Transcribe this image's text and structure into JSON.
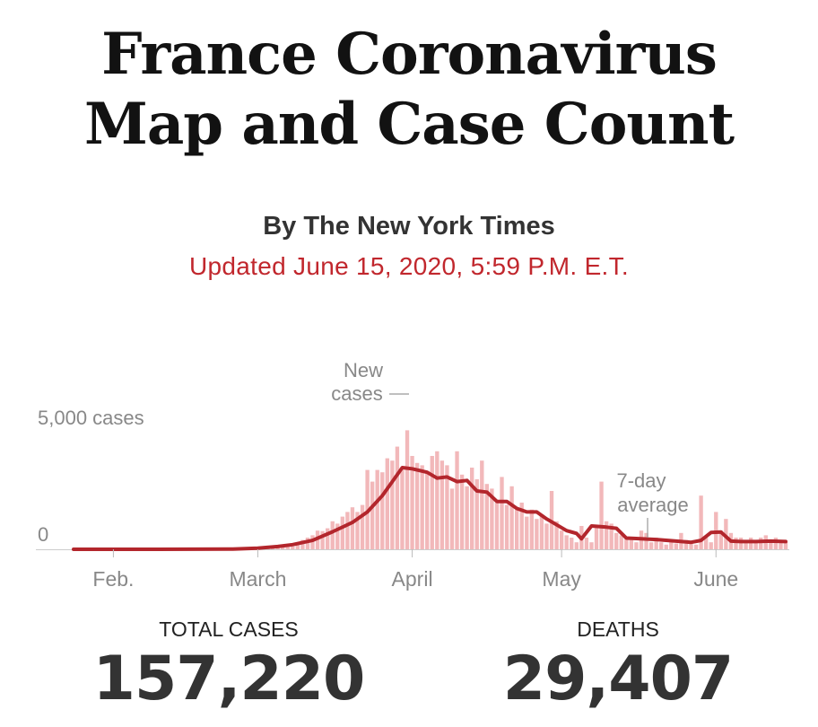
{
  "header": {
    "title_line1": "France Coronavirus",
    "title_line2": "Map and Case Count",
    "byline": "By The New York Times",
    "updated": "Updated June 15, 2020, 5:59 P.M. E.T."
  },
  "colors": {
    "line": "#b3262c",
    "bar": "#f2b8ba",
    "updated_text": "#c1272d"
  },
  "stats": {
    "total_cases_label": "TOTAL CASES",
    "total_cases_value": "157,220",
    "deaths_label": "DEATHS",
    "deaths_value": "29,407"
  },
  "chart_data": {
    "type": "bar",
    "ytick_labels": [
      "5,000 cases",
      "0"
    ],
    "yticks": [
      5000,
      0
    ],
    "ylim": [
      0,
      5200
    ],
    "xtick_labels": [
      "Feb.",
      "March",
      "April",
      "May",
      "June"
    ],
    "xtick_dates": [
      "2020-02-01",
      "2020-03-01",
      "2020-04-01",
      "2020-05-01",
      "2020-06-01"
    ],
    "date_range": [
      "2020-01-24",
      "2020-06-15"
    ],
    "annotations": [
      {
        "text_lines": [
          "New",
          "cases"
        ],
        "target": "bars"
      },
      {
        "text_lines": [
          "7-day",
          "average"
        ],
        "target": "line"
      }
    ],
    "series": [
      {
        "kind": "bars",
        "dates": [
          "2020-02-25",
          "2020-02-26",
          "2020-02-27",
          "2020-02-28",
          "2020-02-29",
          "2020-03-01",
          "2020-03-02",
          "2020-03-03",
          "2020-03-04",
          "2020-03-05",
          "2020-03-06",
          "2020-03-07",
          "2020-03-08",
          "2020-03-09",
          "2020-03-10",
          "2020-03-11",
          "2020-03-12",
          "2020-03-13",
          "2020-03-14",
          "2020-03-15",
          "2020-03-16",
          "2020-03-17",
          "2020-03-18",
          "2020-03-19",
          "2020-03-20",
          "2020-03-21",
          "2020-03-22",
          "2020-03-23",
          "2020-03-24",
          "2020-03-25",
          "2020-03-26",
          "2020-03-27",
          "2020-03-28",
          "2020-03-29",
          "2020-03-30",
          "2020-03-31",
          "2020-04-01",
          "2020-04-02",
          "2020-04-03",
          "2020-04-04",
          "2020-04-05",
          "2020-04-06",
          "2020-04-07",
          "2020-04-08",
          "2020-04-09",
          "2020-04-10",
          "2020-04-11",
          "2020-04-12",
          "2020-04-13",
          "2020-04-14",
          "2020-04-15",
          "2020-04-16",
          "2020-04-17",
          "2020-04-18",
          "2020-04-19",
          "2020-04-20",
          "2020-04-21",
          "2020-04-22",
          "2020-04-23",
          "2020-04-24",
          "2020-04-25",
          "2020-04-26",
          "2020-04-27",
          "2020-04-28",
          "2020-04-29",
          "2020-04-30",
          "2020-05-01",
          "2020-05-02",
          "2020-05-03",
          "2020-05-04",
          "2020-05-05",
          "2020-05-06",
          "2020-05-07",
          "2020-05-08",
          "2020-05-09",
          "2020-05-10",
          "2020-05-11",
          "2020-05-12",
          "2020-05-13",
          "2020-05-14",
          "2020-05-15",
          "2020-05-16",
          "2020-05-17",
          "2020-05-18",
          "2020-05-19",
          "2020-05-20",
          "2020-05-21",
          "2020-05-22",
          "2020-05-23",
          "2020-05-24",
          "2020-05-25",
          "2020-05-26",
          "2020-05-27",
          "2020-05-28",
          "2020-05-29",
          "2020-05-30",
          "2020-05-31",
          "2020-06-01",
          "2020-06-02",
          "2020-06-03",
          "2020-06-04",
          "2020-06-05",
          "2020-06-06",
          "2020-06-07",
          "2020-06-08",
          "2020-06-09",
          "2020-06-10",
          "2020-06-11",
          "2020-06-12",
          "2020-06-13",
          "2020-06-14",
          "2020-06-15"
        ],
        "values": [
          10,
          20,
          15,
          40,
          60,
          30,
          60,
          80,
          100,
          140,
          180,
          200,
          120,
          280,
          400,
          500,
          600,
          800,
          780,
          900,
          1200,
          1100,
          1400,
          1600,
          1800,
          1600,
          1900,
          3400,
          2900,
          3400,
          3300,
          3900,
          3800,
          4400,
          3400,
          5100,
          4000,
          3700,
          3600,
          3300,
          4000,
          4200,
          3800,
          3600,
          2600,
          4200,
          3200,
          2700,
          3500,
          3000,
          3800,
          2800,
          2600,
          2000,
          3100,
          1900,
          2700,
          1700,
          2000,
          1400,
          1700,
          1300,
          1500,
          1100,
          2500,
          1200,
          800,
          600,
          500,
          300,
          1000,
          500,
          300,
          1000,
          2900,
          1200,
          1100,
          700,
          600,
          500,
          400,
          300,
          800,
          700,
          300,
          500,
          300,
          200,
          300,
          250,
          700,
          400,
          300,
          200,
          2300,
          500,
          300,
          1600,
          800,
          1300,
          700,
          500,
          500,
          300,
          500,
          400,
          500,
          600,
          400,
          500,
          400,
          300
        ]
      },
      {
        "kind": "line",
        "dates": [
          "2020-01-24",
          "2020-02-10",
          "2020-02-25",
          "2020-03-01",
          "2020-03-05",
          "2020-03-08",
          "2020-03-12",
          "2020-03-16",
          "2020-03-20",
          "2020-03-23",
          "2020-03-26",
          "2020-03-28",
          "2020-03-30",
          "2020-04-01",
          "2020-04-04",
          "2020-04-06",
          "2020-04-08",
          "2020-04-10",
          "2020-04-12",
          "2020-04-14",
          "2020-04-16",
          "2020-04-18",
          "2020-04-20",
          "2020-04-22",
          "2020-04-24",
          "2020-04-26",
          "2020-04-28",
          "2020-04-30",
          "2020-05-02",
          "2020-05-04",
          "2020-05-05",
          "2020-05-07",
          "2020-05-10",
          "2020-05-12",
          "2020-05-14",
          "2020-05-16",
          "2020-05-20",
          "2020-05-24",
          "2020-05-27",
          "2020-05-29",
          "2020-05-31",
          "2020-06-02",
          "2020-06-04",
          "2020-06-06",
          "2020-06-09",
          "2020-06-12",
          "2020-06-15"
        ],
        "values": [
          0,
          0,
          10,
          50,
          120,
          200,
          380,
          750,
          1150,
          1600,
          2300,
          2900,
          3500,
          3450,
          3300,
          3050,
          3100,
          2900,
          2950,
          2500,
          2450,
          2050,
          2050,
          1750,
          1600,
          1600,
          1300,
          1050,
          800,
          680,
          450,
          1000,
          950,
          900,
          480,
          460,
          420,
          350,
          300,
          380,
          720,
          740,
          350,
          330,
          330,
          350,
          330
        ]
      }
    ]
  }
}
